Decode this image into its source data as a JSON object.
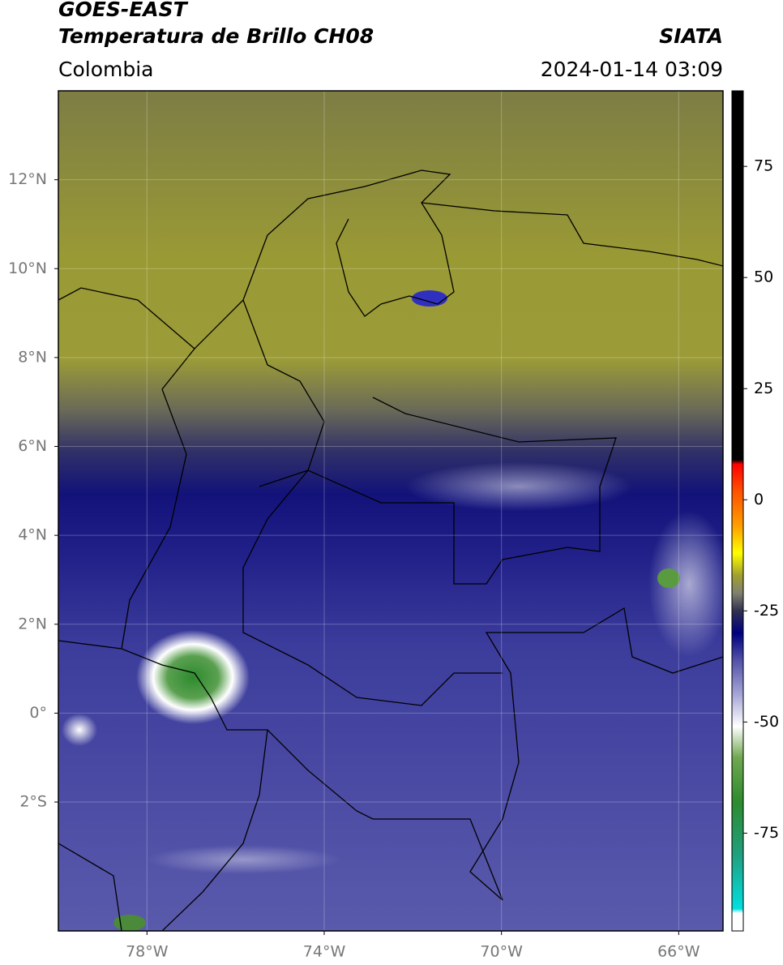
{
  "chart_data": {
    "type": "map",
    "title": "GOES-EAST",
    "subtitle": "Temperatura de Brillo CH08",
    "source": "SIATA",
    "region": "Colombia",
    "datetime": "2024-01-14 03:09",
    "xlim": [
      -80,
      -65
    ],
    "ylim": [
      -4.9,
      14
    ],
    "xticks": [
      {
        "value": -78,
        "label": "78°W"
      },
      {
        "value": -74,
        "label": "74°W"
      },
      {
        "value": -70,
        "label": "70°W"
      },
      {
        "value": -66,
        "label": "66°W"
      }
    ],
    "yticks": [
      {
        "value": 12,
        "label": "12°N"
      },
      {
        "value": 10,
        "label": "10°N"
      },
      {
        "value": 8,
        "label": "8°N"
      },
      {
        "value": 6,
        "label": "6°N"
      },
      {
        "value": 4,
        "label": "4°N"
      },
      {
        "value": 2,
        "label": "2°N"
      },
      {
        "value": 0,
        "label": "0°"
      },
      {
        "value": -2,
        "label": "2°S"
      }
    ],
    "grid": true,
    "colorbar": {
      "lim": [
        -97,
        92
      ],
      "ticks": [
        75,
        50,
        25,
        0,
        -25,
        -50,
        -75
      ],
      "stops": [
        {
          "value": -97,
          "color": "#ffffff"
        },
        {
          "value": -93,
          "color": "#ffffff"
        },
        {
          "value": -92,
          "color": "#00e0e0"
        },
        {
          "value": -80,
          "color": "#20a080"
        },
        {
          "value": -68,
          "color": "#2e8b2e"
        },
        {
          "value": -58,
          "color": "#70a850"
        },
        {
          "value": -51,
          "color": "#ffffff"
        },
        {
          "value": -44,
          "color": "#a8a8d8"
        },
        {
          "value": -36,
          "color": "#5050a8"
        },
        {
          "value": -30,
          "color": "#000080"
        },
        {
          "value": -25,
          "color": "#303050"
        },
        {
          "value": -21,
          "color": "#808070"
        },
        {
          "value": -17,
          "color": "#a0a030"
        },
        {
          "value": -12,
          "color": "#ffff00"
        },
        {
          "value": -6,
          "color": "#ffa000"
        },
        {
          "value": 2,
          "color": "#ff5000"
        },
        {
          "value": 8,
          "color": "#ff0000"
        },
        {
          "value": 9,
          "color": "#000000"
        },
        {
          "value": 92,
          "color": "#000000"
        }
      ]
    }
  }
}
